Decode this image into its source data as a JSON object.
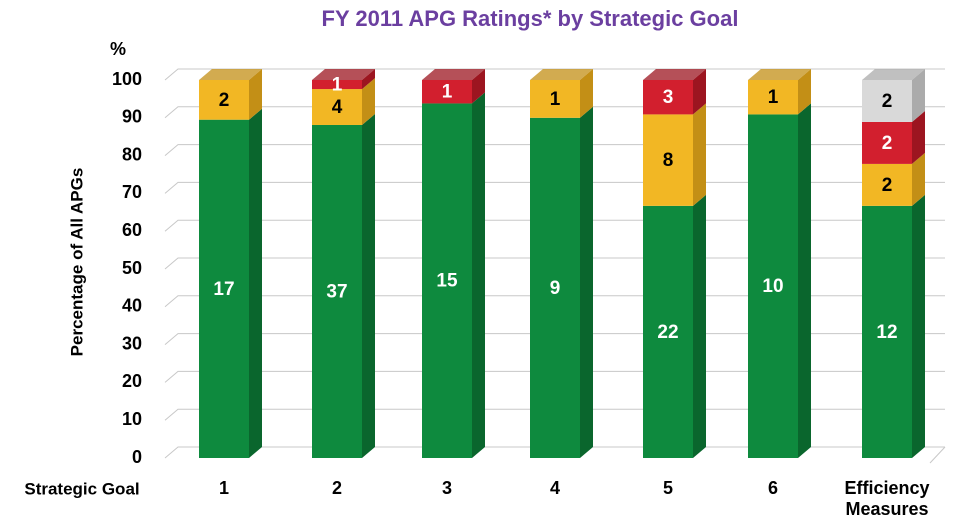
{
  "chart_data": {
    "type": "stacked_bar_3d",
    "title": "FY 2011 APG Ratings* by Strategic Goal",
    "y_label": "Percentage of All APGs",
    "y_unit": "%",
    "x_label": "Strategic Goal",
    "categories": [
      "1",
      "2",
      "3",
      "4",
      "5",
      "6",
      "Efficiency Measures"
    ],
    "series": [
      {
        "color": "#0e8a3e",
        "side": "#0a662d",
        "label_color": "#ffffff",
        "values": [
          89.5,
          88.1,
          93.8,
          90,
          66.7,
          90.9,
          66.7
        ],
        "counts": [
          17,
          37,
          15,
          9,
          22,
          10,
          12
        ]
      },
      {
        "color": "#f2b724",
        "side": "#c38f16",
        "label_color": "#000000",
        "values": [
          10.5,
          9.5,
          null,
          10,
          24.2,
          9.1,
          11.1
        ],
        "counts": [
          2,
          4,
          null,
          1,
          8,
          1,
          2
        ]
      },
      {
        "color": "#d21f2e",
        "side": "#9c1520",
        "label_color": "#ffffff",
        "values": [
          null,
          2.4,
          6.2,
          null,
          9.1,
          null,
          11.1
        ],
        "counts": [
          null,
          1,
          1,
          null,
          3,
          null,
          2
        ]
      },
      {
        "color": "#d9d9d9",
        "side": "#ababab",
        "label_color": "#000000",
        "values": [
          null,
          null,
          null,
          null,
          null,
          null,
          11.1
        ],
        "counts": [
          null,
          null,
          null,
          null,
          null,
          null,
          2
        ]
      }
    ],
    "ylim": [
      0,
      100
    ],
    "yticks": [
      0,
      10,
      20,
      30,
      40,
      50,
      60,
      70,
      80,
      90,
      100
    ],
    "grid": true
  }
}
